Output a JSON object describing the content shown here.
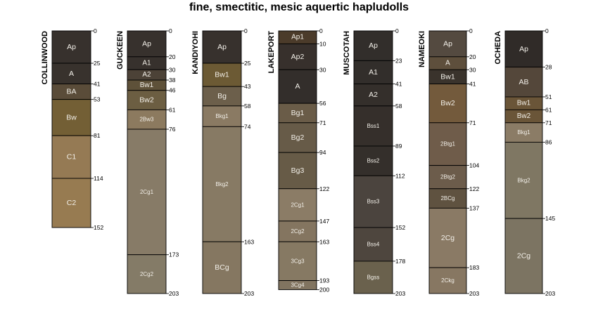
{
  "title": "fine, smectitic, mesic aquertic hapludolls",
  "chart_data": {
    "type": "soil-profile-sketch",
    "depth_unit": "cm",
    "max_depth": 203,
    "profiles": [
      {
        "name": "COLLINWOOD",
        "horizons": [
          {
            "name": "Ap",
            "top": 0,
            "bottom": 25,
            "color": "#37312d"
          },
          {
            "name": "A",
            "top": 25,
            "bottom": 41,
            "color": "#38322d"
          },
          {
            "name": "BA",
            "top": 41,
            "bottom": 53,
            "color": "#5a4c39"
          },
          {
            "name": "Bw",
            "top": 53,
            "bottom": 81,
            "color": "#735f35"
          },
          {
            "name": "C1",
            "top": 81,
            "bottom": 114,
            "color": "#957a54"
          },
          {
            "name": "C2",
            "top": 114,
            "bottom": 152,
            "color": "#977b51"
          }
        ]
      },
      {
        "name": "GUCKEEN",
        "horizons": [
          {
            "name": "Ap",
            "top": 0,
            "bottom": 20,
            "color": "#37312d"
          },
          {
            "name": "A1",
            "top": 20,
            "bottom": 30,
            "color": "#37312d"
          },
          {
            "name": "A2",
            "top": 30,
            "bottom": 38,
            "color": "#4c4237"
          },
          {
            "name": "Bw1",
            "top": 38,
            "bottom": 46,
            "color": "#5e5139"
          },
          {
            "name": "Bw2",
            "top": 46,
            "bottom": 61,
            "color": "#6c5e42"
          },
          {
            "name": "2Bw3",
            "top": 61,
            "bottom": 76,
            "color": "#8c7a5f"
          },
          {
            "name": "2Cg1",
            "top": 76,
            "bottom": 173,
            "color": "#877b67"
          },
          {
            "name": "2Cg2",
            "top": 173,
            "bottom": 203,
            "color": "#847b67"
          }
        ]
      },
      {
        "name": "KANDIYOHI",
        "horizons": [
          {
            "name": "Ap",
            "top": 0,
            "bottom": 25,
            "color": "#37312d"
          },
          {
            "name": "Bw1",
            "top": 25,
            "bottom": 43,
            "color": "#6c5a34"
          },
          {
            "name": "Bg",
            "top": 43,
            "bottom": 58,
            "color": "#6c5f4b"
          },
          {
            "name": "Bkg1",
            "top": 58,
            "bottom": 74,
            "color": "#8a7a63"
          },
          {
            "name": "Bkg2",
            "top": 74,
            "bottom": 163,
            "color": "#877a64"
          },
          {
            "name": "BCg",
            "top": 163,
            "bottom": 203,
            "color": "#857761"
          }
        ]
      },
      {
        "name": "LAKEPORT",
        "horizons": [
          {
            "name": "Ap1",
            "top": 0,
            "bottom": 10,
            "color": "#4b3b2a"
          },
          {
            "name": "Ap2",
            "top": 10,
            "bottom": 30,
            "color": "#37302c"
          },
          {
            "name": "A",
            "top": 30,
            "bottom": 56,
            "color": "#332e2b"
          },
          {
            "name": "Bg1",
            "top": 56,
            "bottom": 71,
            "color": "#6a5c48"
          },
          {
            "name": "Bg2",
            "top": 71,
            "bottom": 94,
            "color": "#675b48"
          },
          {
            "name": "Bg3",
            "top": 94,
            "bottom": 122,
            "color": "#675b47"
          },
          {
            "name": "2Cg1",
            "top": 122,
            "bottom": 147,
            "color": "#8b7c66"
          },
          {
            "name": "2Cg2",
            "top": 147,
            "bottom": 163,
            "color": "#847560"
          },
          {
            "name": "3Cg3",
            "top": 163,
            "bottom": 193,
            "color": "#867963"
          },
          {
            "name": "3Cg4",
            "top": 193,
            "bottom": 200,
            "color": "#817460"
          }
        ]
      },
      {
        "name": "MUSCOTAH",
        "horizons": [
          {
            "name": "Ap",
            "top": 0,
            "bottom": 23,
            "color": "#322e2b"
          },
          {
            "name": "A1",
            "top": 23,
            "bottom": 41,
            "color": "#322e2b"
          },
          {
            "name": "A2",
            "top": 41,
            "bottom": 58,
            "color": "#342f2b"
          },
          {
            "name": "Bss1",
            "top": 58,
            "bottom": 89,
            "color": "#352f2b"
          },
          {
            "name": "Bss2",
            "top": 89,
            "bottom": 112,
            "color": "#342f2b"
          },
          {
            "name": "Bss3",
            "top": 112,
            "bottom": 152,
            "color": "#4b443e"
          },
          {
            "name": "Bss4",
            "top": 152,
            "bottom": 178,
            "color": "#4e463e"
          },
          {
            "name": "Bgss",
            "top": 178,
            "bottom": 203,
            "color": "#6a614d"
          }
        ]
      },
      {
        "name": "NAMEOKI",
        "horizons": [
          {
            "name": "Ap",
            "top": 0,
            "bottom": 20,
            "color": "#544a40"
          },
          {
            "name": "A",
            "top": 20,
            "bottom": 30,
            "color": "#5e4f3c"
          },
          {
            "name": "Bw1",
            "top": 30,
            "bottom": 41,
            "color": "#3a332c"
          },
          {
            "name": "Bw2",
            "top": 41,
            "bottom": 71,
            "color": "#735a3c"
          },
          {
            "name": "2Btg1",
            "top": 71,
            "bottom": 104,
            "color": "#6f5c4a"
          },
          {
            "name": "2Btg2",
            "top": 104,
            "bottom": 122,
            "color": "#6c5c4b"
          },
          {
            "name": "2BCg",
            "top": 122,
            "bottom": 137,
            "color": "#5f5240"
          },
          {
            "name": "2Cg",
            "top": 137,
            "bottom": 183,
            "color": "#8a7a65"
          },
          {
            "name": "2Ckg",
            "top": 183,
            "bottom": 203,
            "color": "#877762"
          }
        ]
      },
      {
        "name": "OCHEDA",
        "horizons": [
          {
            "name": "Ap",
            "top": 0,
            "bottom": 28,
            "color": "#302b28"
          },
          {
            "name": "AB",
            "top": 28,
            "bottom": 51,
            "color": "#54473a"
          },
          {
            "name": "Bw1",
            "top": 51,
            "bottom": 61,
            "color": "#6a5538"
          },
          {
            "name": "Bw2",
            "top": 61,
            "bottom": 71,
            "color": "#6a5538"
          },
          {
            "name": "Bkg1",
            "top": 71,
            "bottom": 86,
            "color": "#8b7c66"
          },
          {
            "name": "Bkg2",
            "top": 86,
            "bottom": 145,
            "color": "#7f7763"
          },
          {
            "name": "2Cg",
            "top": 145,
            "bottom": 203,
            "color": "#7c7462"
          }
        ]
      }
    ]
  }
}
